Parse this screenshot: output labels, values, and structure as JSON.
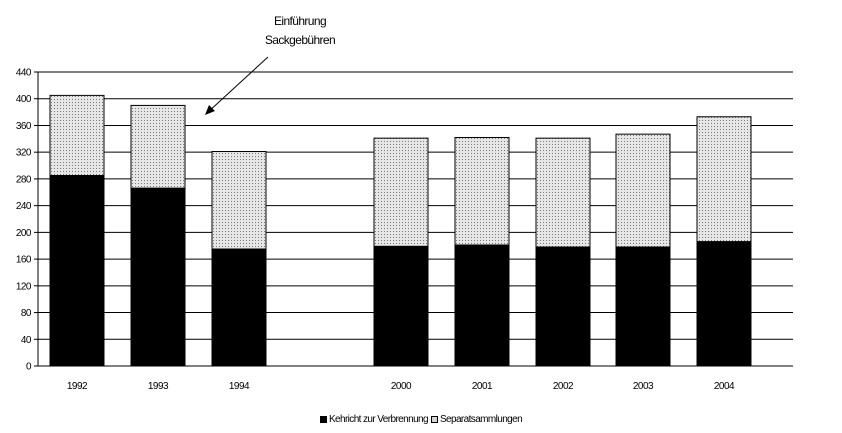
{
  "chart_data": {
    "type": "bar",
    "stacked": true,
    "categories": [
      "1992",
      "1993",
      "1994",
      "2000",
      "2001",
      "2002",
      "2003",
      "2004"
    ],
    "series": [
      {
        "name": "Kehricht zur Verbrennung",
        "values": [
          285,
          266,
          175,
          179,
          181,
          178,
          178,
          186
        ],
        "pattern": "solid-black"
      },
      {
        "name": "Separatsammlungen",
        "values": [
          120,
          124,
          146,
          162,
          161,
          163,
          169,
          187
        ],
        "pattern": "dotted-gray"
      }
    ],
    "ylim": [
      0,
      440
    ],
    "yticks": [
      0,
      40,
      80,
      120,
      160,
      200,
      240,
      280,
      320,
      360,
      400,
      440
    ],
    "grid": true,
    "legend": "bottom-center",
    "annotation": {
      "lines": [
        "Einführung",
        "Sackgebühren"
      ],
      "arrow_to_category": "1993"
    },
    "colors": {
      "series1": "#000000",
      "series2": "#d4d4d4",
      "grid": "#000000"
    }
  }
}
